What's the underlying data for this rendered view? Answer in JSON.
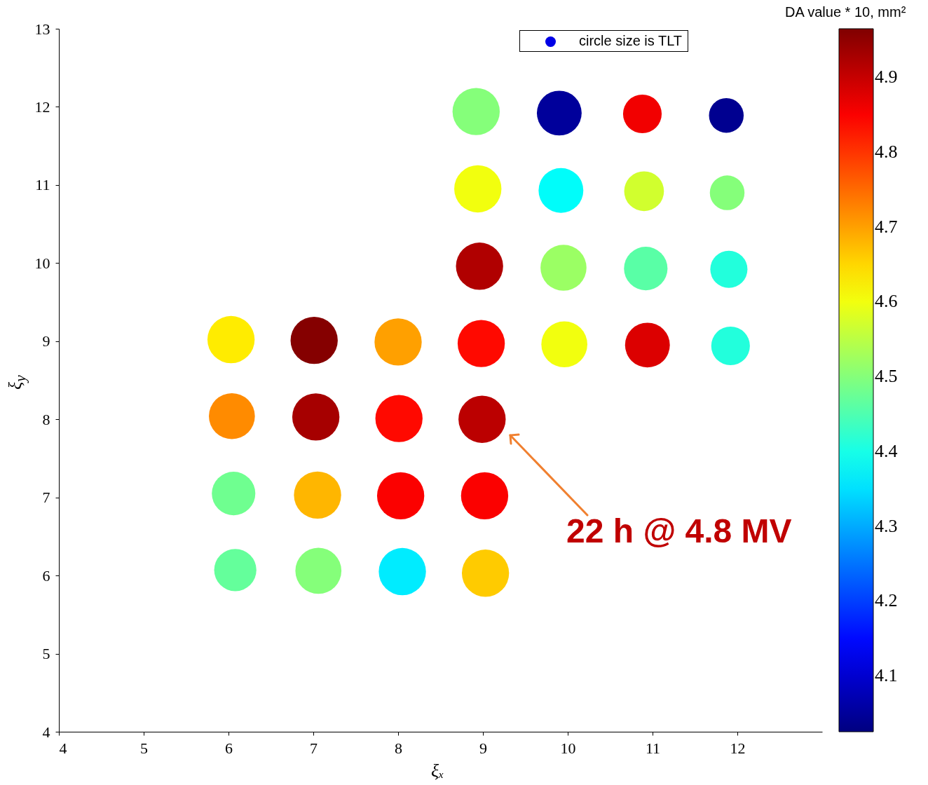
{
  "chart_data": {
    "type": "bubble",
    "xlabel": "ξₓ",
    "ylabel": "ξ$_{y}$",
    "legend_title": "DA value * 10, mm²",
    "legend": "top right",
    "grid": false,
    "marker": "circle",
    "xlim": [
      4,
      13
    ],
    "xticks": [
      4,
      5,
      6,
      7,
      8,
      9,
      10,
      11,
      12
    ],
    "ylim": [
      4,
      13
    ],
    "yticks": [
      4,
      5,
      6,
      7,
      8,
      9,
      10,
      11,
      12,
      13
    ],
    "clim": [
      4.025,
      4.965
    ],
    "cticks": [
      4.1,
      4.2,
      4.3,
      4.4,
      4.5,
      4.6,
      4.7,
      4.8,
      4.9
    ],
    "annotations": [
      "22 h @ 4.8 MV"
    ],
    "series": [
      {
        "name": "circle size is TLT",
        "x": [
          8.92,
          9.9,
          10.88,
          11.87,
          8.94,
          9.92,
          10.9,
          11.88,
          8.96,
          9.95,
          10.92,
          11.9,
          6.03,
          7.01,
          8.0,
          8.98,
          9.96,
          10.94,
          11.92,
          6.04,
          7.03,
          8.01,
          8.99,
          6.06,
          7.05,
          8.03,
          9.02,
          6.08,
          7.06,
          8.05,
          9.03
        ],
        "values": [
          11.94,
          11.92,
          11.91,
          11.89,
          10.95,
          10.93,
          10.92,
          10.9,
          9.96,
          9.94,
          9.93,
          9.92,
          9.02,
          9.01,
          8.99,
          8.97,
          8.96,
          8.95,
          8.94,
          8.04,
          8.03,
          8.01,
          8.0,
          7.05,
          7.03,
          7.02,
          7.02,
          6.07,
          6.06,
          6.05,
          6.03
        ],
        "sizes": [
          1,
          0.9,
          0.67,
          0.54,
          1,
          0.9,
          0.71,
          0.54,
          1,
          0.95,
          0.85,
          0.62,
          1,
          1,
          1,
          1,
          0.95,
          0.9,
          0.67,
          0.95,
          1,
          1,
          1,
          0.85,
          1,
          1,
          1,
          0.8,
          0.95,
          1,
          1
        ],
        "cvalues": [
          4.5,
          4.05,
          4.86,
          4.04,
          4.6,
          4.38,
          4.57,
          4.5,
          4.92,
          4.52,
          4.46,
          4.41,
          4.63,
          4.96,
          4.7,
          4.84,
          4.6,
          4.88,
          4.41,
          4.72,
          4.93,
          4.84,
          4.91,
          4.48,
          4.68,
          4.85,
          4.85,
          4.47,
          4.5,
          4.36,
          4.66
        ]
      }
    ]
  }
}
